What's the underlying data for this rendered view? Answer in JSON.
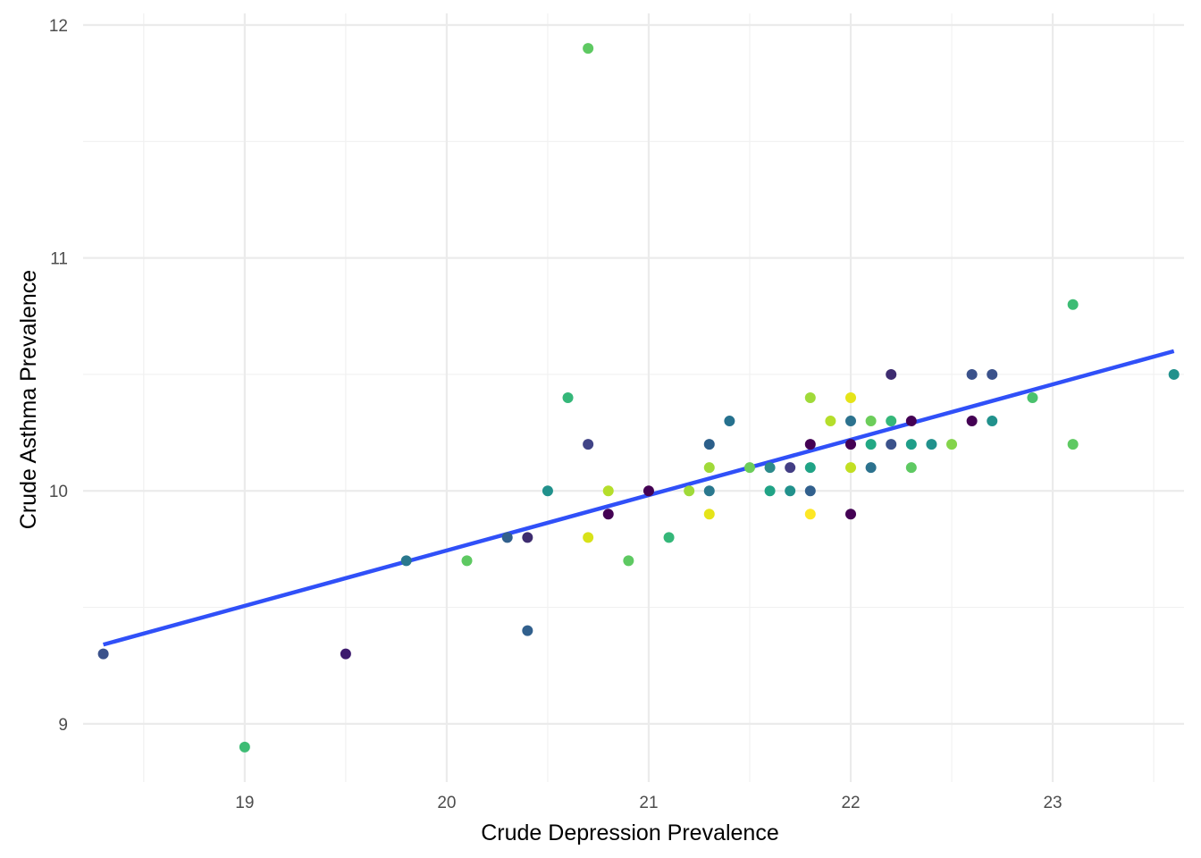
{
  "chart_data": {
    "type": "scatter",
    "xlabel": "Crude Depression Prevalence",
    "ylabel": "Crude Asthma Prevalence",
    "xlim": [
      18.2,
      23.65
    ],
    "ylim": [
      8.75,
      12.05
    ],
    "x_ticks": [
      19,
      20,
      21,
      22,
      23
    ],
    "x_tick_labels": [
      "19",
      "20",
      "21",
      "22",
      "23"
    ],
    "y_ticks": [
      9,
      10,
      11,
      12
    ],
    "y_tick_labels": [
      "9",
      "10",
      "11",
      "12"
    ],
    "grid": true,
    "legend": "none",
    "point_colors": "viridis",
    "trend_line": {
      "color": "#3050f8",
      "x": [
        18.3,
        23.6
      ],
      "y": [
        9.34,
        10.6
      ]
    },
    "points": [
      {
        "x": 18.3,
        "y": 9.3,
        "color": "#3b528b"
      },
      {
        "x": 19.0,
        "y": 8.9,
        "color": "#3dbc74"
      },
      {
        "x": 19.5,
        "y": 9.3,
        "color": "#3d1a6e"
      },
      {
        "x": 19.8,
        "y": 9.7,
        "color": "#2a788e"
      },
      {
        "x": 20.1,
        "y": 9.7,
        "color": "#5ec962"
      },
      {
        "x": 20.3,
        "y": 9.8,
        "color": "#31608d"
      },
      {
        "x": 20.4,
        "y": 9.8,
        "color": "#3e2c70"
      },
      {
        "x": 20.4,
        "y": 9.4,
        "color": "#31608d"
      },
      {
        "x": 20.5,
        "y": 10.0,
        "color": "#21918c"
      },
      {
        "x": 20.6,
        "y": 10.4,
        "color": "#35b779"
      },
      {
        "x": 20.7,
        "y": 11.9,
        "color": "#5ec962"
      },
      {
        "x": 20.7,
        "y": 10.2,
        "color": "#414487"
      },
      {
        "x": 20.7,
        "y": 9.8,
        "color": "#d8e219"
      },
      {
        "x": 20.8,
        "y": 10.0,
        "color": "#b5de2b"
      },
      {
        "x": 20.8,
        "y": 9.9,
        "color": "#440154"
      },
      {
        "x": 20.9,
        "y": 9.7,
        "color": "#5ec962"
      },
      {
        "x": 21.0,
        "y": 10.0,
        "color": "#440154"
      },
      {
        "x": 21.1,
        "y": 9.8,
        "color": "#35b779"
      },
      {
        "x": 21.2,
        "y": 10.0,
        "color": "#a0da39"
      },
      {
        "x": 21.3,
        "y": 10.2,
        "color": "#2c5f8a"
      },
      {
        "x": 21.3,
        "y": 10.1,
        "color": "#a0da39"
      },
      {
        "x": 21.3,
        "y": 10.0,
        "color": "#2a788e"
      },
      {
        "x": 21.3,
        "y": 9.9,
        "color": "#e5e419"
      },
      {
        "x": 21.4,
        "y": 10.3,
        "color": "#26718e"
      },
      {
        "x": 21.5,
        "y": 10.1,
        "color": "#6ccd5a"
      },
      {
        "x": 21.6,
        "y": 10.1,
        "color": "#2c8a8c"
      },
      {
        "x": 21.6,
        "y": 10.0,
        "color": "#20a386"
      },
      {
        "x": 21.7,
        "y": 10.1,
        "color": "#433e85"
      },
      {
        "x": 21.7,
        "y": 10.0,
        "color": "#21918c"
      },
      {
        "x": 21.8,
        "y": 10.4,
        "color": "#a0da39"
      },
      {
        "x": 21.8,
        "y": 10.2,
        "color": "#440154"
      },
      {
        "x": 21.8,
        "y": 10.1,
        "color": "#20a386"
      },
      {
        "x": 21.8,
        "y": 10.0,
        "color": "#31608d"
      },
      {
        "x": 21.8,
        "y": 9.9,
        "color": "#fde725"
      },
      {
        "x": 21.9,
        "y": 10.3,
        "color": "#b5de2b"
      },
      {
        "x": 22.0,
        "y": 10.4,
        "color": "#e5e419"
      },
      {
        "x": 22.0,
        "y": 10.3,
        "color": "#2c728e"
      },
      {
        "x": 22.0,
        "y": 10.2,
        "color": "#440154"
      },
      {
        "x": 22.0,
        "y": 10.1,
        "color": "#c2df23"
      },
      {
        "x": 22.0,
        "y": 9.9,
        "color": "#440154"
      },
      {
        "x": 22.1,
        "y": 10.3,
        "color": "#6ccd5a"
      },
      {
        "x": 22.1,
        "y": 10.2,
        "color": "#22a884"
      },
      {
        "x": 22.1,
        "y": 10.1,
        "color": "#2c728e"
      },
      {
        "x": 22.2,
        "y": 10.5,
        "color": "#3e2c70"
      },
      {
        "x": 22.2,
        "y": 10.3,
        "color": "#35b779"
      },
      {
        "x": 22.2,
        "y": 10.2,
        "color": "#3b528b"
      },
      {
        "x": 22.3,
        "y": 10.3,
        "color": "#440154"
      },
      {
        "x": 22.3,
        "y": 10.2,
        "color": "#1f9e89"
      },
      {
        "x": 22.3,
        "y": 10.1,
        "color": "#5ec962"
      },
      {
        "x": 22.4,
        "y": 10.2,
        "color": "#21918c"
      },
      {
        "x": 22.5,
        "y": 10.2,
        "color": "#84d44b"
      },
      {
        "x": 22.6,
        "y": 10.5,
        "color": "#3b528b"
      },
      {
        "x": 22.6,
        "y": 10.3,
        "color": "#440154"
      },
      {
        "x": 22.7,
        "y": 10.5,
        "color": "#3b528b"
      },
      {
        "x": 22.7,
        "y": 10.3,
        "color": "#21918c"
      },
      {
        "x": 22.9,
        "y": 10.4,
        "color": "#4ac16d"
      },
      {
        "x": 23.1,
        "y": 10.8,
        "color": "#3dbc74"
      },
      {
        "x": 23.1,
        "y": 10.2,
        "color": "#5ec962"
      },
      {
        "x": 23.6,
        "y": 10.5,
        "color": "#21918c"
      }
    ]
  }
}
